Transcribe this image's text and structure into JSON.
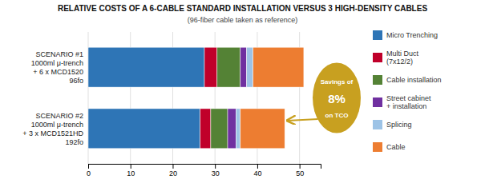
{
  "chart_data": {
    "type": "bar",
    "orientation": "horizontal",
    "stacked": true,
    "title": "RELATIVE COSTS OF A 6-CABLE STANDARD INSTALLATION VERSUS 3 HIGH-DENSITY CABLES",
    "subtitle": "(96-fiber cable taken as reference)",
    "categories": [
      "SCENARIO #1\n1000ml μ-trench\n+ 6 x MCD1520\n96fo",
      "SCENARIO #2\n1000ml μ-trench\n+ 3 x MCD1521HD\n192fo"
    ],
    "series": [
      {
        "name": "Micro Trenching",
        "color": "#2E75B6",
        "values": [
          27.5,
          26.5
        ]
      },
      {
        "name": "Multi Duct\n(7x12/2)",
        "color": "#C0002A",
        "values": [
          3.0,
          2.5
        ]
      },
      {
        "name": "Cable installation",
        "color": "#548235",
        "values": [
          5.5,
          4.0
        ]
      },
      {
        "name": "Street cabinet\n+ installation",
        "color": "#7030A0",
        "values": [
          1.5,
          2.0
        ]
      },
      {
        "name": "Splicing",
        "color": "#9DC3E6",
        "values": [
          1.5,
          1.0
        ]
      },
      {
        "name": "Cable",
        "color": "#ED7D31",
        "values": [
          12.0,
          10.5
        ]
      }
    ],
    "xlim": [
      0,
      55
    ],
    "xticks": [
      0,
      10,
      20,
      30,
      40,
      50
    ],
    "grid": true,
    "legend": "right",
    "annotations": [
      {
        "text": [
          "Savings of",
          "8%",
          "on TCO"
        ],
        "color": "#C8A020"
      }
    ]
  }
}
